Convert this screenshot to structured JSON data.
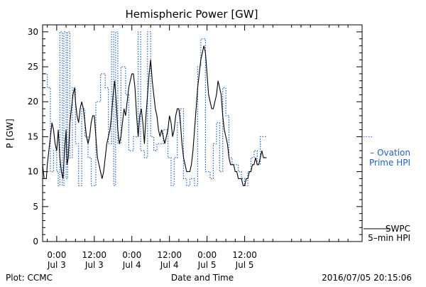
{
  "chart_data": {
    "type": "line",
    "title": "Hemispheric Power [GW]",
    "ylabel": "P [GW]",
    "xlabel": "Date and Time",
    "ylim": [
      0,
      31
    ],
    "yticks": [
      0,
      5,
      10,
      15,
      20,
      25,
      30
    ],
    "xlim_hours": [
      -4.5,
      97.5
    ],
    "xticks": [
      {
        "hour": 0,
        "line1": "0:00",
        "line2": "Jul 3"
      },
      {
        "hour": 12,
        "line1": "12:00",
        "line2": "Jul 3"
      },
      {
        "hour": 24,
        "line1": "0:00",
        "line2": "Jul 4"
      },
      {
        "hour": 36,
        "line1": "12:00",
        "line2": "Jul 4"
      },
      {
        "hour": 48,
        "line1": "0:00",
        "line2": "Jul 5"
      },
      {
        "hour": 60,
        "line1": "12:00",
        "line2": "Jul 5"
      }
    ],
    "grid": false,
    "series": [
      {
        "name": "Ovation Prime HPI",
        "label_line1": "– Ovation",
        "label_line2": "Prime HPI",
        "color": "#2060c0",
        "style": "dotted",
        "points": [
          [
            -4.5,
            24
          ],
          [
            -3,
            24
          ],
          [
            -3,
            22
          ],
          [
            -2,
            22
          ],
          [
            -2,
            10
          ],
          [
            -1,
            10
          ],
          [
            -1,
            13
          ],
          [
            0,
            13
          ],
          [
            0,
            10
          ],
          [
            0.5,
            10
          ],
          [
            0.5,
            8
          ],
          [
            1,
            8
          ],
          [
            1,
            30
          ],
          [
            1.8,
            30
          ],
          [
            1.8,
            8
          ],
          [
            2.3,
            8
          ],
          [
            2.3,
            30
          ],
          [
            3,
            30
          ],
          [
            3,
            9
          ],
          [
            3.5,
            9
          ],
          [
            3.5,
            30
          ],
          [
            4.2,
            30
          ],
          [
            4.2,
            12
          ],
          [
            5,
            12
          ],
          [
            5,
            22
          ],
          [
            6,
            22
          ],
          [
            6,
            14
          ],
          [
            7,
            14
          ],
          [
            7,
            8
          ],
          [
            8,
            8
          ],
          [
            8,
            19
          ],
          [
            9,
            19
          ],
          [
            9,
            15
          ],
          [
            10,
            15
          ],
          [
            10,
            12
          ],
          [
            11,
            12
          ],
          [
            11,
            8
          ],
          [
            12.5,
            8
          ],
          [
            12.5,
            20
          ],
          [
            14,
            20
          ],
          [
            14,
            24
          ],
          [
            15.5,
            24
          ],
          [
            15.5,
            22
          ],
          [
            16.5,
            22
          ],
          [
            16.5,
            14
          ],
          [
            17.5,
            14
          ],
          [
            17.5,
            30
          ],
          [
            18.2,
            30
          ],
          [
            18.2,
            8
          ],
          [
            18.8,
            8
          ],
          [
            18.8,
            30
          ],
          [
            19.5,
            30
          ],
          [
            19.5,
            14
          ],
          [
            20.5,
            14
          ],
          [
            20.5,
            25
          ],
          [
            22,
            25
          ],
          [
            22,
            21
          ],
          [
            23,
            21
          ],
          [
            23,
            13
          ],
          [
            24.5,
            13
          ],
          [
            24.5,
            15
          ],
          [
            26,
            15
          ],
          [
            26,
            30
          ],
          [
            26.8,
            30
          ],
          [
            26.8,
            13
          ],
          [
            28,
            13
          ],
          [
            28,
            12
          ],
          [
            29,
            12
          ],
          [
            29,
            30
          ],
          [
            30,
            30
          ],
          [
            30,
            15
          ],
          [
            31,
            15
          ],
          [
            31,
            13
          ],
          [
            32,
            13
          ],
          [
            32,
            14
          ],
          [
            34,
            14
          ],
          [
            34,
            16
          ],
          [
            35.5,
            16
          ],
          [
            35.5,
            12
          ],
          [
            36.5,
            12
          ],
          [
            36.5,
            8
          ],
          [
            37.5,
            8
          ],
          [
            37.5,
            12
          ],
          [
            38.5,
            12
          ],
          [
            38.5,
            17
          ],
          [
            39.5,
            17
          ],
          [
            39.5,
            19
          ],
          [
            40.5,
            19
          ],
          [
            40.5,
            9
          ],
          [
            41.5,
            9
          ],
          [
            41.5,
            8
          ],
          [
            42.5,
            8
          ],
          [
            42.5,
            9
          ],
          [
            44,
            9
          ],
          [
            44,
            8
          ],
          [
            45,
            8
          ],
          [
            45,
            25
          ],
          [
            46,
            25
          ],
          [
            46,
            29
          ],
          [
            47.5,
            29
          ],
          [
            47.5,
            10
          ],
          [
            49,
            10
          ],
          [
            49,
            9
          ],
          [
            50,
            9
          ],
          [
            50,
            14
          ],
          [
            51,
            14
          ],
          [
            51,
            17
          ],
          [
            52,
            17
          ],
          [
            52,
            10
          ],
          [
            53,
            10
          ],
          [
            53,
            22
          ],
          [
            54,
            22
          ],
          [
            54,
            18
          ],
          [
            55,
            18
          ],
          [
            55,
            12
          ],
          [
            56,
            12
          ],
          [
            56,
            11
          ],
          [
            58,
            11
          ],
          [
            58,
            10
          ],
          [
            59,
            10
          ],
          [
            59,
            9
          ],
          [
            60,
            9
          ],
          [
            60,
            8
          ],
          [
            61,
            8
          ],
          [
            61,
            10
          ],
          [
            62,
            10
          ],
          [
            62,
            12
          ],
          [
            63,
            12
          ],
          [
            63,
            13
          ],
          [
            64,
            13
          ],
          [
            64,
            11
          ],
          [
            65,
            11
          ],
          [
            65,
            15
          ],
          [
            67,
            15
          ]
        ]
      },
      {
        "name": "SWPC 5-min HPI",
        "label_line1": "SWPC",
        "label_line2": "5–min HPI",
        "color": "#000000",
        "style": "solid",
        "points": [
          [
            -4.5,
            11
          ],
          [
            -4,
            9
          ],
          [
            -3.3,
            9
          ],
          [
            -3,
            11
          ],
          [
            -2.5,
            13
          ],
          [
            -2,
            15
          ],
          [
            -1.5,
            17
          ],
          [
            -1,
            16
          ],
          [
            -0.5,
            14
          ],
          [
            0,
            13
          ],
          [
            0.5,
            16
          ],
          [
            1,
            12
          ],
          [
            1.5,
            10
          ],
          [
            2,
            9
          ],
          [
            2.5,
            13
          ],
          [
            3,
            16
          ],
          [
            3.3,
            11
          ],
          [
            3.7,
            12
          ],
          [
            4.2,
            17
          ],
          [
            4.7,
            19
          ],
          [
            5.2,
            21
          ],
          [
            5.7,
            22
          ],
          [
            6,
            20
          ],
          [
            6.5,
            18
          ],
          [
            7,
            17
          ],
          [
            7.5,
            19
          ],
          [
            8,
            20
          ],
          [
            8.5,
            19
          ],
          [
            9,
            17
          ],
          [
            9.5,
            15
          ],
          [
            10,
            14
          ],
          [
            10.5,
            15
          ],
          [
            11,
            17
          ],
          [
            11.5,
            18
          ],
          [
            12,
            18
          ],
          [
            12.5,
            15
          ],
          [
            13,
            12
          ],
          [
            13.5,
            11
          ],
          [
            14,
            10
          ],
          [
            14.5,
            9
          ],
          [
            15,
            10
          ],
          [
            15.5,
            12
          ],
          [
            16,
            14
          ],
          [
            17,
            16
          ],
          [
            17.5,
            18
          ],
          [
            18,
            21
          ],
          [
            18.5,
            23
          ],
          [
            19,
            20
          ],
          [
            19.5,
            16
          ],
          [
            20,
            14
          ],
          [
            20.5,
            15
          ],
          [
            21,
            17
          ],
          [
            21.5,
            19
          ],
          [
            22,
            18
          ],
          [
            22.5,
            20
          ],
          [
            23,
            22
          ],
          [
            23.5,
            23
          ],
          [
            24,
            24
          ],
          [
            24.5,
            24
          ],
          [
            25,
            22
          ],
          [
            25.5,
            18
          ],
          [
            26,
            15
          ],
          [
            26.5,
            18
          ],
          [
            27,
            19
          ],
          [
            27.5,
            17
          ],
          [
            28,
            14
          ],
          [
            28.5,
            18
          ],
          [
            29,
            21
          ],
          [
            29.5,
            24
          ],
          [
            30,
            26
          ],
          [
            30.5,
            23
          ],
          [
            31,
            21
          ],
          [
            31.5,
            19
          ],
          [
            32,
            18
          ],
          [
            32.5,
            16
          ],
          [
            33,
            15
          ],
          [
            33.5,
            16
          ],
          [
            34,
            15
          ],
          [
            34.5,
            14
          ],
          [
            35,
            15
          ],
          [
            35.5,
            16
          ],
          [
            36,
            18
          ],
          [
            36.5,
            17
          ],
          [
            37,
            15
          ],
          [
            37.5,
            16
          ],
          [
            38,
            18
          ],
          [
            38.5,
            19
          ],
          [
            39,
            19
          ],
          [
            39.5,
            17
          ],
          [
            40,
            14
          ],
          [
            40.5,
            12
          ],
          [
            41,
            11
          ],
          [
            41.5,
            10
          ],
          [
            42,
            10
          ],
          [
            42.5,
            10
          ],
          [
            43,
            11
          ],
          [
            43.5,
            13
          ],
          [
            44,
            16
          ],
          [
            44.5,
            19
          ],
          [
            45,
            22
          ],
          [
            45.5,
            24
          ],
          [
            46,
            26
          ],
          [
            46.5,
            27
          ],
          [
            47,
            28
          ],
          [
            47.5,
            27
          ],
          [
            48,
            24
          ],
          [
            48.5,
            21
          ],
          [
            49,
            20
          ],
          [
            49.5,
            19
          ],
          [
            50,
            19
          ],
          [
            50.5,
            20
          ],
          [
            51,
            21
          ],
          [
            51.5,
            23
          ],
          [
            52,
            22
          ],
          [
            52.5,
            21
          ],
          [
            53,
            18
          ],
          [
            53.5,
            16
          ],
          [
            54,
            15
          ],
          [
            54.5,
            14
          ],
          [
            55,
            12
          ],
          [
            55.5,
            11
          ],
          [
            56,
            11
          ],
          [
            56.5,
            11
          ],
          [
            57,
            10
          ],
          [
            57.5,
            10
          ],
          [
            58,
            9
          ],
          [
            58.5,
            9
          ],
          [
            59,
            9
          ],
          [
            59.5,
            8
          ],
          [
            60,
            8
          ],
          [
            60.5,
            9
          ],
          [
            61,
            9
          ],
          [
            61.5,
            10
          ],
          [
            62,
            10
          ],
          [
            62.5,
            11
          ],
          [
            63,
            11
          ],
          [
            63.5,
            12
          ],
          [
            64,
            11
          ],
          [
            64.5,
            11
          ],
          [
            65,
            12
          ],
          [
            65.5,
            13
          ],
          [
            66,
            12
          ],
          [
            67,
            12
          ]
        ]
      }
    ],
    "footer_left": "Plot: CCMC",
    "footer_right": "2016/07/05 20:15:06"
  }
}
